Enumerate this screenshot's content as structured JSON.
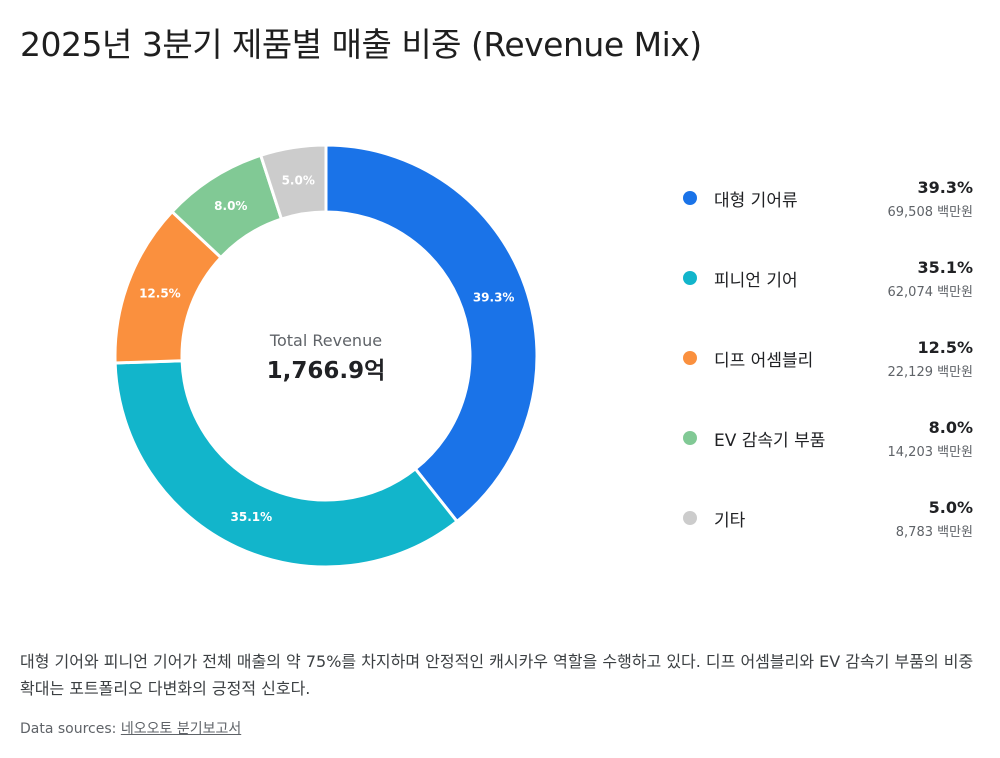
{
  "title": "2025년 3분기 제품별 매출 비중 (Revenue Mix)",
  "center": {
    "label": "Total Revenue",
    "value": "1,766.9억"
  },
  "chart_data": {
    "type": "pie",
    "variant": "donut",
    "title": "2025년 3분기 제품별 매출 비중 (Revenue Mix)",
    "slices": [
      {
        "name": "대형 기어류",
        "percent": 39.3,
        "percent_label": "39.3%",
        "value": 69508,
        "value_label": "69,508 백만원",
        "color": "#1a73e8"
      },
      {
        "name": "피니언 기어",
        "percent": 35.1,
        "percent_label": "35.1%",
        "value": 62074,
        "value_label": "62,074 백만원",
        "color": "#12b5cb"
      },
      {
        "name": "디프 어셈블리",
        "percent": 12.5,
        "percent_label": "12.5%",
        "value": 22129,
        "value_label": "22,129 백만원",
        "color": "#fa903e"
      },
      {
        "name": "EV 감속기 부품",
        "percent": 8.0,
        "percent_label": "8.0%",
        "value": 14203,
        "value_label": "14,203 백만원",
        "color": "#81c995"
      },
      {
        "name": "기타",
        "percent": 5.0,
        "percent_label": "5.0%",
        "value": 8783,
        "value_label": "8,783 백만원",
        "color": "#cccccc"
      }
    ],
    "legend_position": "right"
  },
  "summary": "대형 기어와 피니언 기어가 전체 매출의 약 75%를 차지하며 안정적인 캐시카우 역할을 수행하고 있다. 디프 어셈블리와 EV 감속기 부품의 비중 확대는 포트폴리오 다변화의 긍정적 신호다.",
  "sources": {
    "prefix": "Data sources: ",
    "link": "네오오토 분기보고서"
  }
}
